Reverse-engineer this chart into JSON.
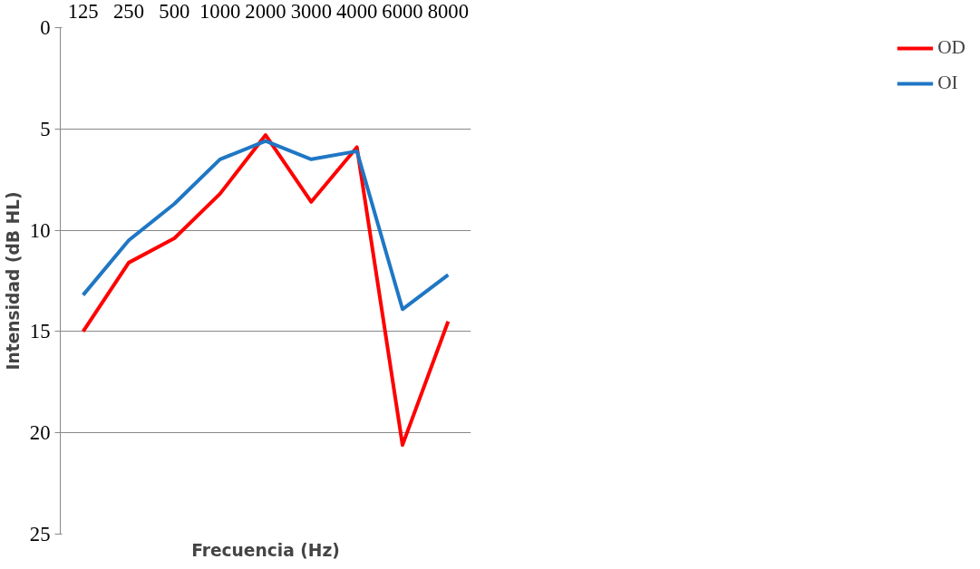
{
  "chart_data": {
    "type": "line",
    "xlabel": "Frecuencia (Hz)",
    "ylabel": "Intensidad (dB HL)",
    "categories": [
      "125",
      "250",
      "500",
      "1000",
      "2000",
      "3000",
      "4000",
      "6000",
      "8000"
    ],
    "series": [
      {
        "name": "OD",
        "color": "#ff0000",
        "values": [
          15.0,
          11.6,
          10.4,
          8.2,
          5.3,
          8.6,
          5.9,
          20.6,
          14.5
        ]
      },
      {
        "name": "OI",
        "color": "#1f77c4",
        "values": [
          13.2,
          10.5,
          8.7,
          6.5,
          5.6,
          6.5,
          6.1,
          13.9,
          12.2
        ]
      }
    ],
    "ylim": [
      25,
      0
    ],
    "yticks": [
      0,
      5,
      10,
      15,
      20,
      25
    ],
    "grid": "y",
    "legend": "right",
    "marker": "none",
    "line_style": "solid"
  }
}
